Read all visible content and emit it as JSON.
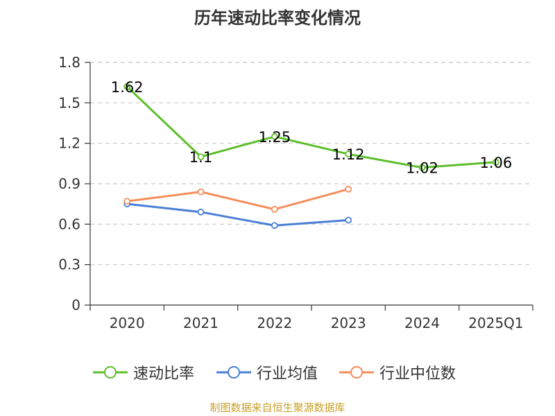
{
  "chart_data": {
    "type": "line",
    "title": "历年速动比率变化情况",
    "categories": [
      "2020",
      "2021",
      "2022",
      "2023",
      "2024",
      "2025Q1"
    ],
    "ylim": [
      0,
      1.8
    ],
    "yticks": [
      "0",
      "0.3",
      "0.6",
      "0.9",
      "1.2",
      "1.5",
      "1.8"
    ],
    "ytick_values": [
      0,
      0.3,
      0.6,
      0.9,
      1.2,
      1.5,
      1.8
    ],
    "grid": true,
    "legend_position": "bottom",
    "series": [
      {
        "name": "速动比率",
        "color": "#5cbf2a",
        "values": [
          1.62,
          1.1,
          1.25,
          1.12,
          1.02,
          1.06
        ],
        "labels": [
          "1.62",
          "1.1",
          "1.25",
          "1.12",
          "1.02",
          "1.06"
        ]
      },
      {
        "name": "行业均值",
        "color": "#4a7fd6",
        "values": [
          0.75,
          0.69,
          0.59,
          0.63,
          null,
          null
        ]
      },
      {
        "name": "行业中位数",
        "color": "#f58d5a",
        "values": [
          0.77,
          0.84,
          0.71,
          0.86,
          null,
          null
        ]
      }
    ]
  },
  "footer": {
    "source": "制图数据来自恒生聚源数据库"
  }
}
